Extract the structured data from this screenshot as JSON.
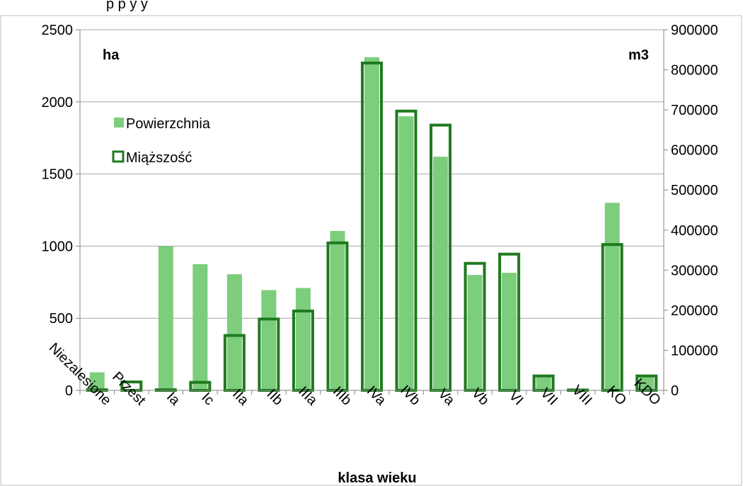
{
  "title_fragment": "p                                    p          y      y",
  "chart_data": {
    "type": "bar",
    "categories": [
      "Niezalesione",
      "Przest",
      "Ia",
      "Ic",
      "IIa",
      "IIb",
      "IIIa",
      "IIIb",
      "IVa",
      "IVb",
      "Va",
      "Vb",
      "VI",
      "VII",
      "VIII",
      "KO",
      "KDO"
    ],
    "series": [
      {
        "name": "Powierzchnia",
        "axis": "left",
        "color": "#7ccd7c",
        "values": [
          125,
          5,
          1000,
          875,
          805,
          695,
          710,
          1105,
          2310,
          1900,
          1620,
          800,
          815,
          100,
          5,
          1300,
          95
        ]
      },
      {
        "name": "Miąższość",
        "axis": "right",
        "color": "#1f7a1f",
        "values": [
          1500,
          21000,
          1500,
          20000,
          137000,
          178000,
          198000,
          368000,
          817000,
          697000,
          662000,
          317000,
          340000,
          36000,
          1000,
          364000,
          36000
        ]
      }
    ],
    "left_axis": {
      "unit_label": "ha",
      "ylim": [
        0,
        2500
      ],
      "ticks": [
        "0",
        "500",
        "1000",
        "1500",
        "2000",
        "2500"
      ]
    },
    "right_axis": {
      "unit_label": "m3",
      "ylim": [
        0,
        900000
      ],
      "ticks": [
        "0",
        "100000",
        "200000",
        "300000",
        "400000",
        "500000",
        "600000",
        "700000",
        "800000",
        "900000"
      ]
    },
    "xlabel": "klasa wieku",
    "grid": true,
    "legend_position": "upper-left"
  }
}
